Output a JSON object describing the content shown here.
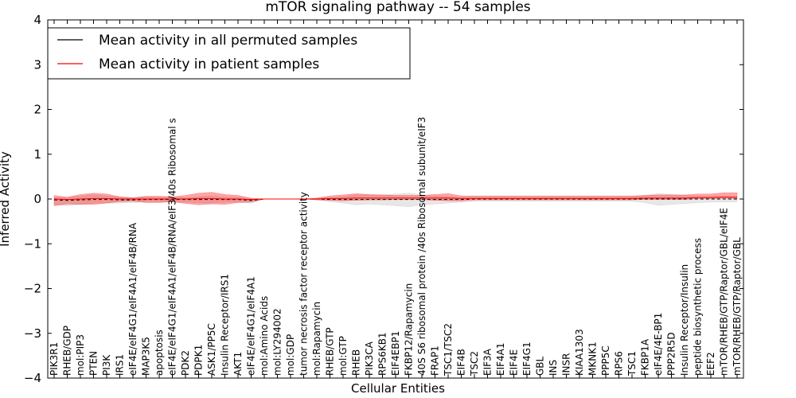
{
  "chart_data": {
    "type": "line",
    "title": "mTOR signaling pathway -- 54 samples",
    "xlabel": "Cellular Entities",
    "ylabel": "Inferred Activity",
    "ylim": [
      -4,
      4
    ],
    "yticks": [
      "-4",
      "-3",
      "-2",
      "-1",
      "0",
      "1",
      "2",
      "3",
      "4"
    ],
    "legend_position": "top-left",
    "categories": [
      "PIK3R1",
      "RHEB/GDP",
      "mol:PIP3",
      "PTEN",
      "PI3K",
      "IRS1",
      "eIF4E/eIF4G1/eIF4A1/eIF4B/RNA",
      "MAP3K5",
      "apoptosis",
      "eIF4E/eIF4G1/eIF4A1/eIF4B/RNA/eIF3/40s Ribosomal s",
      "PDK2",
      "PDPK1",
      "ASK1/PP5C",
      "Insulin Receptor/IRS1",
      "AKT1",
      "eIF4E/eIF4G1/eIF4A1",
      "mol:Amino Acids",
      "mol:LY294002",
      "mol:GDP",
      "tumor necrosis factor receptor activity",
      "mol:Rapamycin",
      "RHEB/GTP",
      "mol:GTP",
      "RHEB",
      "PIK3CA",
      "RPS6KB1",
      "EIF4EBP1",
      "FKBP12/Rapamycin",
      "40S S6 ribosomal protein /40s Ribosomal subunit/eIF3",
      "FRAP1",
      "TSC1/TSC2",
      "EIF4B",
      "TSC2",
      "EIF3A",
      "EIF4A1",
      "EIF4E",
      "EIF4G1",
      "GBL",
      "INS",
      "INSR",
      "KIAA1303",
      "MKNK1",
      "PPP5C",
      "RPS6",
      "TSC1",
      "FKBP1A",
      "eIF4E/4E-BP1",
      "PPP2R5D",
      "Insulin Receptor/Insulin",
      "peptide biosynthetic process",
      "EEF2",
      "mTOR/RHEB/GTP/Raptor/GBL/eIF4E",
      "mTOR/RHEB/GTP/Raptor/GBL"
    ],
    "series": [
      {
        "name": "Mean activity in all permuted samples",
        "color": "#000000",
        "values": [
          -0.02,
          -0.03,
          -0.02,
          -0.01,
          -0.01,
          -0.02,
          -0.02,
          -0.01,
          -0.01,
          -0.01,
          -0.01,
          -0.01,
          -0.01,
          -0.01,
          -0.01,
          -0.03,
          0,
          0,
          0,
          0,
          0,
          -0.01,
          -0.01,
          -0.01,
          -0.01,
          -0.01,
          -0.01,
          -0.01,
          -0.01,
          -0.01,
          -0.01,
          -0.01,
          0,
          0,
          0,
          0,
          0,
          0,
          0,
          0,
          0,
          0,
          0,
          0,
          0,
          0,
          0,
          0,
          0,
          0,
          0,
          0,
          0
        ],
        "band": {
          "color": "#a0a0a0",
          "upper": [
            0.05,
            0.06,
            0.08,
            0.1,
            0.08,
            0.06,
            0.04,
            0.06,
            0.05,
            0.05,
            0.04,
            0.06,
            0.08,
            0.05,
            0.05,
            0.03,
            0,
            0,
            0,
            0,
            0.02,
            0.04,
            0.06,
            0.1,
            0.1,
            0.1,
            0.12,
            0.14,
            0.1,
            0.08,
            0.06,
            0.05,
            0.05,
            0.05,
            0.05,
            0.05,
            0.05,
            0.05,
            0.05,
            0.05,
            0.05,
            0.05,
            0.05,
            0.05,
            0.05,
            0.08,
            0.12,
            0.1,
            0.08,
            0.06,
            0.06,
            0.06,
            0.05
          ],
          "lower": [
            -0.1,
            -0.12,
            -0.1,
            -0.08,
            -0.08,
            -0.07,
            -0.06,
            -0.05,
            -0.05,
            -0.06,
            -0.06,
            -0.07,
            -0.08,
            -0.06,
            -0.06,
            -0.06,
            0,
            0,
            0,
            0,
            -0.02,
            -0.05,
            -0.08,
            -0.12,
            -0.1,
            -0.12,
            -0.14,
            -0.16,
            -0.12,
            -0.1,
            -0.08,
            -0.06,
            -0.05,
            -0.05,
            -0.05,
            -0.05,
            -0.05,
            -0.05,
            -0.05,
            -0.05,
            -0.05,
            -0.05,
            -0.05,
            -0.05,
            -0.05,
            -0.08,
            -0.14,
            -0.12,
            -0.1,
            -0.08,
            -0.07,
            -0.07,
            -0.06
          ]
        }
      },
      {
        "name": "Mean activity in patient samples",
        "color": "#ff0000",
        "values": [
          0,
          -0.01,
          0,
          0.01,
          0.01,
          0,
          0,
          0,
          0,
          0,
          0,
          0.01,
          0.01,
          0,
          0,
          -0.01,
          0,
          0,
          0,
          0,
          0,
          0.01,
          0.01,
          0.02,
          0.02,
          0.02,
          0.02,
          0.02,
          0.02,
          0.02,
          0.02,
          0.01,
          0.01,
          0.01,
          0.01,
          0.01,
          0.01,
          0.01,
          0.01,
          0.01,
          0.01,
          0.01,
          0.01,
          0.01,
          0.01,
          0.02,
          0.02,
          0.02,
          0.02,
          0.03,
          0.03,
          0.04,
          0.04
        ],
        "band": {
          "color": "#ff0000",
          "upper": [
            0.08,
            0.05,
            0.1,
            0.12,
            0.1,
            0.05,
            0.03,
            0.06,
            0.06,
            0.05,
            0.08,
            0.12,
            0.14,
            0.1,
            0.08,
            0.03,
            0,
            0,
            0,
            0,
            0.02,
            0.06,
            0.08,
            0.1,
            0.08,
            0.07,
            0.06,
            0.06,
            0.06,
            0.08,
            0.1,
            0.06,
            0.06,
            0.06,
            0.06,
            0.06,
            0.06,
            0.06,
            0.06,
            0.06,
            0.06,
            0.06,
            0.06,
            0.06,
            0.06,
            0.06,
            0.07,
            0.07,
            0.07,
            0.08,
            0.08,
            0.1,
            0.1
          ],
          "lower": [
            -0.15,
            -0.1,
            -0.12,
            -0.13,
            -0.1,
            -0.06,
            -0.05,
            -0.08,
            -0.08,
            -0.06,
            -0.1,
            -0.14,
            -0.12,
            -0.12,
            -0.08,
            -0.06,
            0,
            0,
            0,
            0,
            -0.02,
            -0.04,
            -0.05,
            -0.05,
            -0.04,
            -0.04,
            -0.03,
            -0.03,
            -0.03,
            -0.05,
            -0.06,
            -0.05,
            -0.03,
            -0.03,
            -0.03,
            -0.03,
            -0.03,
            -0.03,
            -0.03,
            -0.03,
            -0.03,
            -0.03,
            -0.03,
            -0.03,
            -0.03,
            -0.03,
            -0.03,
            -0.03,
            -0.03,
            -0.02,
            -0.02,
            -0.02,
            -0.03
          ]
        }
      }
    ]
  }
}
